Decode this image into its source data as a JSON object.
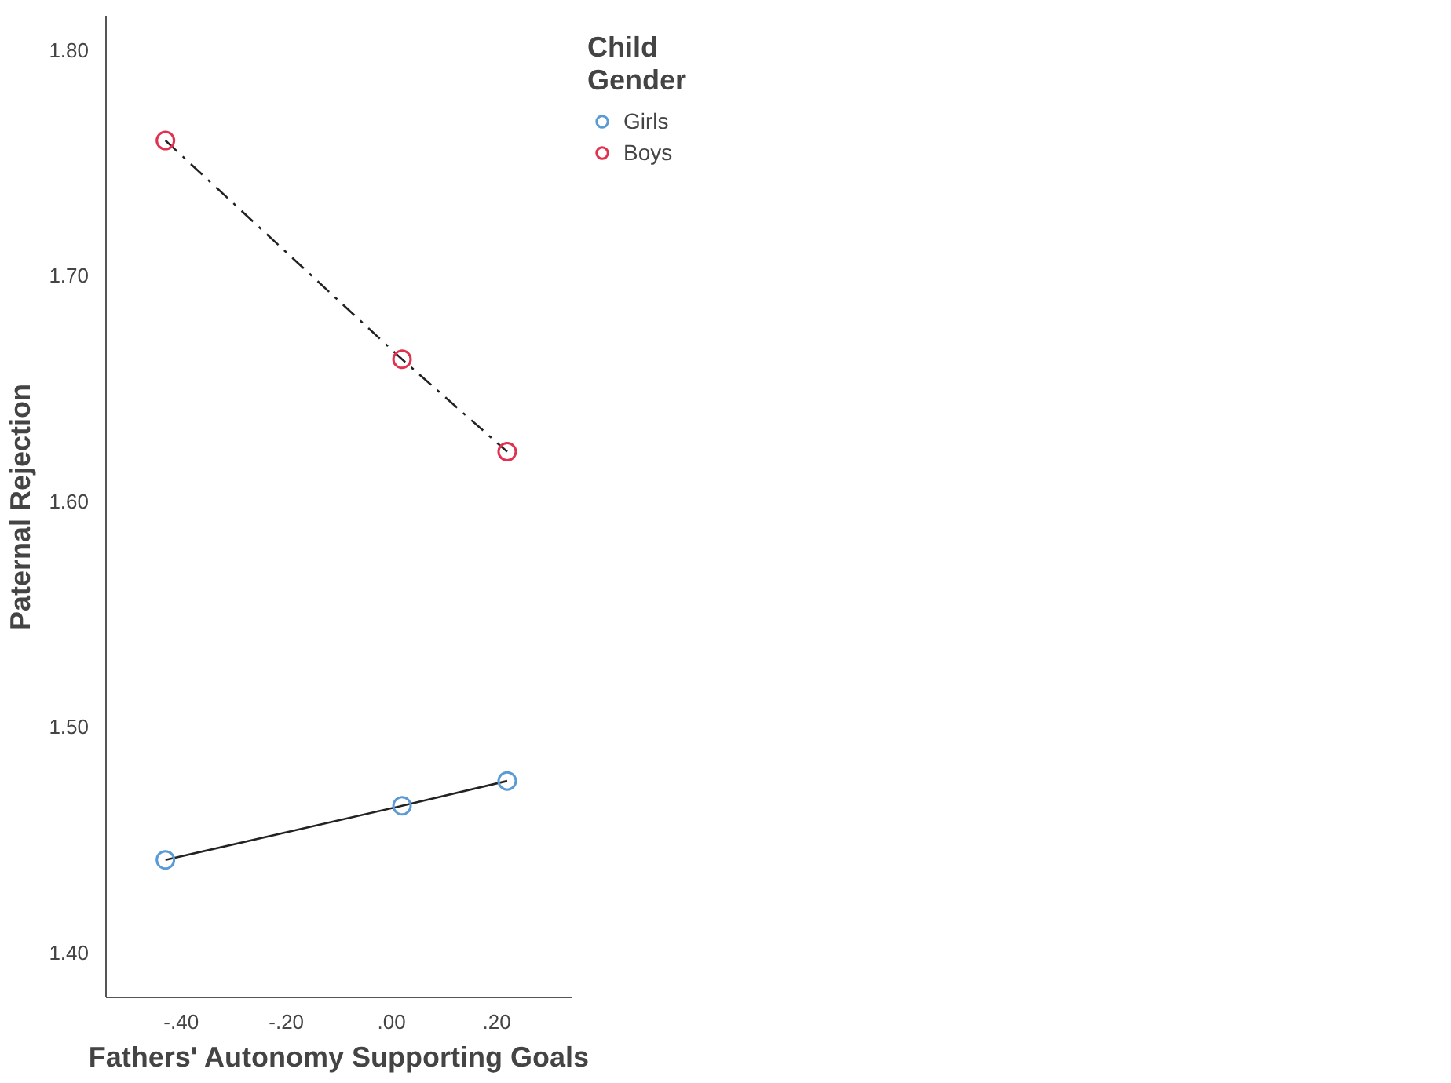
{
  "chart_data": {
    "type": "line",
    "xlabel": "Fathers' Autonomy Supporting Goals",
    "ylabel": "Paternal Rejection",
    "legend_title": "Child\nGender",
    "x": [
      -0.43,
      0.02,
      0.22
    ],
    "series": [
      {
        "name": "Girls",
        "color": "#5b9bd5",
        "values": [
          1.441,
          1.465,
          1.476
        ],
        "line_style": "solid"
      },
      {
        "name": "Boys",
        "color": "#e0314f",
        "values": [
          1.76,
          1.663,
          1.622
        ],
        "line_style": "dashed"
      }
    ],
    "xlim": [
      -0.543,
      0.344
    ],
    "ylim": [
      1.38,
      1.815
    ],
    "xticks": [
      {
        "value": -0.4,
        "label": "-.40"
      },
      {
        "value": -0.2,
        "label": "-.20"
      },
      {
        "value": 0,
        "label": ".00"
      },
      {
        "value": 0.2,
        "label": ".20"
      }
    ],
    "yticks": [
      {
        "value": 1.4,
        "label": "1.40"
      },
      {
        "value": 1.5,
        "label": "1.50"
      },
      {
        "value": 1.6,
        "label": "1.60"
      },
      {
        "value": 1.7,
        "label": "1.70"
      },
      {
        "value": 1.8,
        "label": "1.80"
      }
    ],
    "grid": false,
    "legend": "top right",
    "marker": "circle"
  }
}
